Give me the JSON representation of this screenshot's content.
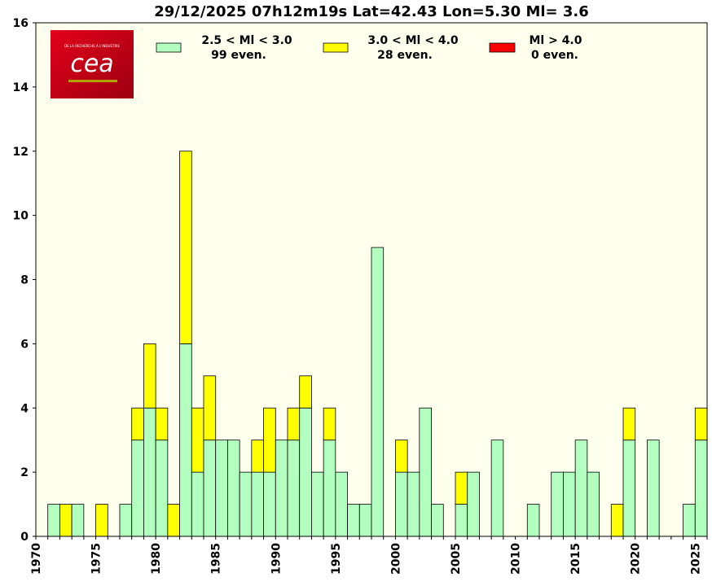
{
  "chart_data": {
    "type": "bar",
    "stacked": true,
    "title": "29/12/2025 07h12m19s Lat=42.43 Lon=5.30 Ml= 3.6",
    "xlabel": "",
    "ylabel": "",
    "xlim": [
      1970,
      2026
    ],
    "ylim": [
      0,
      16
    ],
    "yticks": [
      "0",
      "2",
      "4",
      "6",
      "8",
      "10",
      "12",
      "14",
      "16"
    ],
    "xticks": [
      "1970",
      "1975",
      "1980",
      "1985",
      "1990",
      "1995",
      "2000",
      "2005",
      "2010",
      "2015",
      "2020",
      "2025"
    ],
    "years": [
      1970,
      1971,
      1972,
      1973,
      1974,
      1975,
      1976,
      1977,
      1978,
      1979,
      1980,
      1981,
      1982,
      1983,
      1984,
      1985,
      1986,
      1987,
      1988,
      1989,
      1990,
      1991,
      1992,
      1993,
      1994,
      1995,
      1996,
      1997,
      1998,
      1999,
      2000,
      2001,
      2002,
      2003,
      2004,
      2005,
      2006,
      2007,
      2008,
      2009,
      2010,
      2011,
      2012,
      2013,
      2014,
      2015,
      2016,
      2017,
      2018,
      2019,
      2020,
      2021,
      2022,
      2023,
      2024,
      2025
    ],
    "series": [
      {
        "name": "2.5 < Ml <  3.0",
        "color": "#b3ffbf",
        "values": [
          0,
          1,
          0,
          1,
          0,
          0,
          0,
          1,
          3,
          4,
          3,
          0,
          6,
          2,
          3,
          3,
          3,
          2,
          2,
          2,
          3,
          3,
          4,
          2,
          3,
          2,
          1,
          1,
          9,
          0,
          2,
          2,
          4,
          1,
          0,
          1,
          2,
          0,
          3,
          0,
          0,
          1,
          0,
          2,
          2,
          3,
          2,
          0,
          0,
          3,
          0,
          3,
          0,
          0,
          1,
          3
        ]
      },
      {
        "name": "3.0 < Ml <  4.0",
        "color": "#ffff00",
        "values": [
          0,
          0,
          1,
          0,
          0,
          1,
          0,
          0,
          1,
          2,
          1,
          1,
          6,
          2,
          2,
          0,
          0,
          0,
          1,
          2,
          0,
          1,
          1,
          0,
          1,
          0,
          0,
          0,
          0,
          0,
          1,
          0,
          0,
          0,
          0,
          1,
          0,
          0,
          0,
          0,
          0,
          0,
          0,
          0,
          0,
          0,
          0,
          0,
          1,
          1,
          0,
          0,
          0,
          0,
          0,
          1
        ]
      },
      {
        "name": "Ml >  4.0",
        "color": "#ff0000",
        "values": [
          0,
          0,
          0,
          0,
          0,
          0,
          0,
          0,
          0,
          0,
          0,
          0,
          0,
          0,
          0,
          0,
          0,
          0,
          0,
          0,
          0,
          0,
          0,
          0,
          0,
          0,
          0,
          0,
          0,
          0,
          0,
          0,
          0,
          0,
          0,
          0,
          0,
          0,
          0,
          0,
          0,
          0,
          0,
          0,
          0,
          0,
          0,
          0,
          0,
          0,
          0,
          0,
          0,
          0,
          0,
          0
        ]
      }
    ],
    "legend": [
      {
        "label": "2.5 < Ml <  3.0",
        "count": "99 even.",
        "color": "#b3ffbf"
      },
      {
        "label": "3.0 < Ml <  4.0",
        "count": "28 even.",
        "color": "#ffff00"
      },
      {
        "label": "Ml >  4.0",
        "count": "0 even.",
        "color": "#ff0000"
      }
    ],
    "legend_position": "top",
    "plot_background": "#ffffee"
  },
  "logo": {
    "text": "cea",
    "tagline": "DE LA RECHERCHE À L'INDUSTRIE"
  }
}
